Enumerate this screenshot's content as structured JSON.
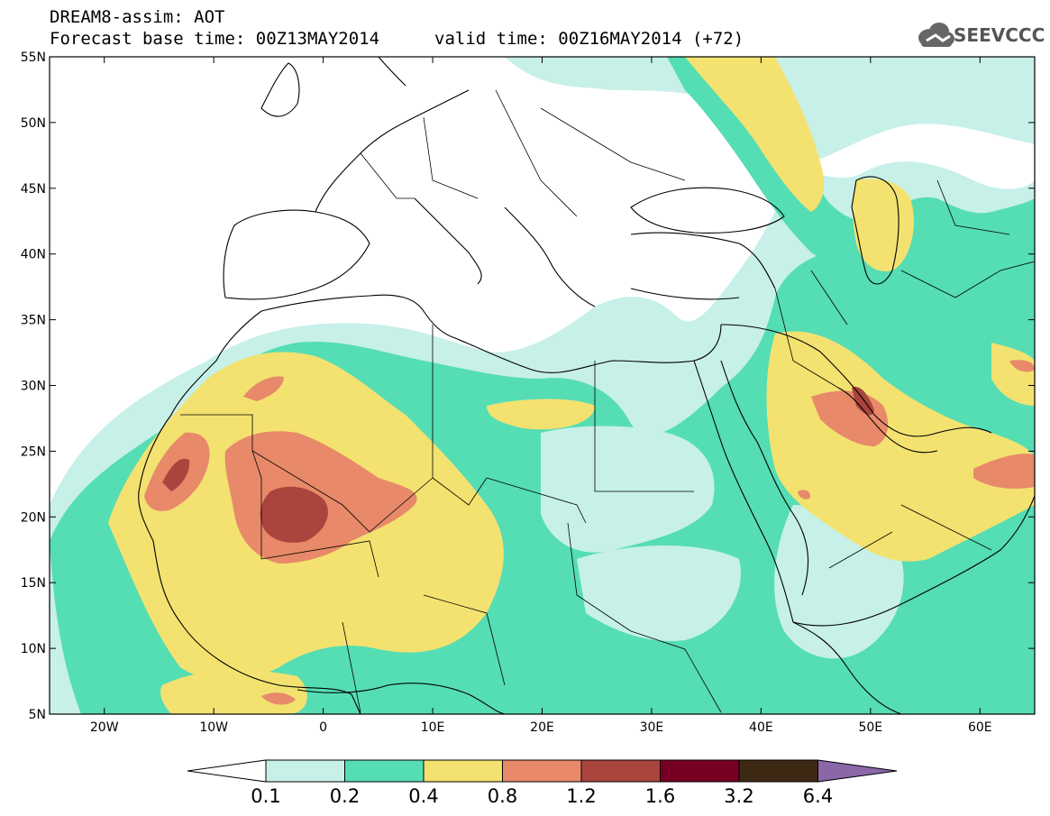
{
  "header": {
    "line1": "DREAM8-assim: AOT",
    "line2": "Forecast base time: 00Z13MAY2014",
    "valid": "valid time: 00Z16MAY2014 (+72)"
  },
  "logo": {
    "text": "SEEVCCC",
    "icon": "cloud-icon"
  },
  "map": {
    "lat_ticks": [
      "55N",
      "50N",
      "45N",
      "40N",
      "35N",
      "30N",
      "25N",
      "20N",
      "15N",
      "10N",
      "5N"
    ],
    "lon_ticks": [
      "20W",
      "10W",
      "0",
      "10E",
      "20E",
      "30E",
      "40E",
      "50E",
      "60E"
    ],
    "lon_range": [
      -25,
      65
    ],
    "lat_range": [
      5,
      55
    ]
  },
  "colorbar": {
    "labels": [
      "0.1",
      "0.2",
      "0.4",
      "0.8",
      "1.2",
      "1.6",
      "3.2",
      "6.4"
    ],
    "colors": [
      "#ffffff",
      "#c7f0e8",
      "#55ddb4",
      "#f3e270",
      "#e8896a",
      "#a9453c",
      "#770022",
      "#3e2915",
      "#8c67a8"
    ]
  },
  "colors": {
    "c1": "#c7f0e8",
    "c2": "#55ddb4",
    "c3": "#f3e270",
    "c4": "#e8896a",
    "c5": "#a9453c",
    "c6": "#770022"
  }
}
